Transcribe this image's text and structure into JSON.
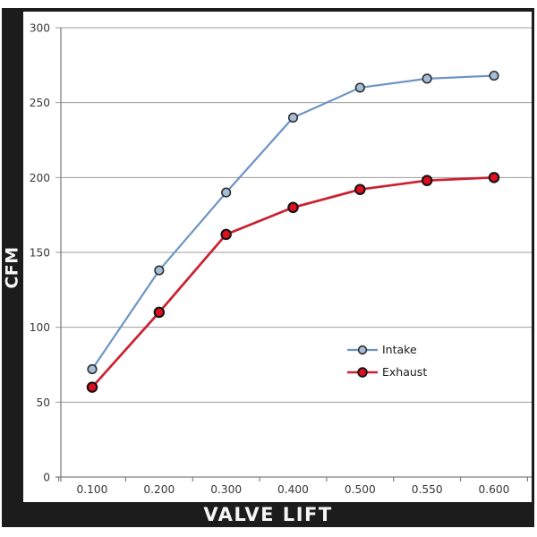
{
  "chart_data": {
    "type": "line",
    "title": "",
    "xlabel": "VALVE LIFT",
    "ylabel": "CFM",
    "x_categories": [
      "0.100",
      "0.200",
      "0.300",
      "0.400",
      "0.500",
      "0.550",
      "0.600"
    ],
    "series": [
      {
        "name": "Intake",
        "values": [
          72,
          138,
          190,
          240,
          260,
          266,
          268
        ],
        "line_color": "#6E94C5",
        "marker_fill": "#A4BDD8",
        "marker_stroke": "#2f2f2f"
      },
      {
        "name": "Exhaust",
        "values": [
          60,
          110,
          162,
          180,
          192,
          198,
          200
        ],
        "line_color": "#CB2130",
        "marker_fill": "#E00E1E",
        "marker_stroke": "#141414"
      }
    ],
    "ylim": [
      0,
      300
    ],
    "y_ticks": [
      0,
      50,
      100,
      150,
      200,
      250,
      300
    ],
    "grid": "horizontal",
    "legend_position": "inside-right",
    "axis_color": "#7f7f7f",
    "grid_color": "#9b9b9b",
    "tick_label_color": "#383838",
    "frame_color": "#1c1c1c"
  }
}
